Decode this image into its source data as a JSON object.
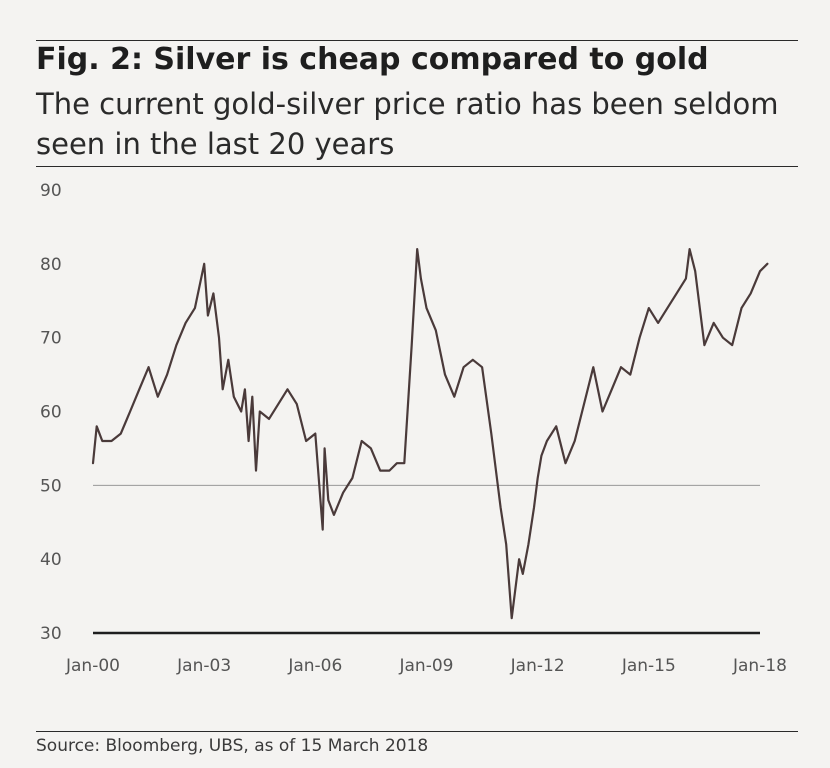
{
  "figure": {
    "title": "Fig. 2: Silver is cheap compared to gold",
    "subtitle": "The current gold-silver price ratio has been seldom seen in the last 20 years",
    "source": "Source: Bloomberg, UBS, as of 15 March 2018"
  },
  "chart_data": {
    "type": "line",
    "title": "Fig. 2: Silver is cheap compared to gold",
    "subtitle": "The current gold-silver price ratio has been seldom seen in the last 20 years",
    "xlabel": "",
    "ylabel": "",
    "ylim": [
      30,
      90
    ],
    "yticks": [
      "90",
      "80",
      "70",
      "60",
      "50",
      "40",
      "30"
    ],
    "xlim": [
      2000.0,
      2018.0
    ],
    "xticks": [
      {
        "label": "Jan-00",
        "value": 2000.0
      },
      {
        "label": "Jan-03",
        "value": 2003.0
      },
      {
        "label": "Jan-06",
        "value": 2006.0
      },
      {
        "label": "Jan-09",
        "value": 2009.0
      },
      {
        "label": "Jan-12",
        "value": 2012.0
      },
      {
        "label": "Jan-15",
        "value": 2015.0
      },
      {
        "label": "Jan-18",
        "value": 2018.0
      }
    ],
    "gridlines": [
      50
    ],
    "legend": "none",
    "line_color": "#4a3a3a",
    "series": [
      {
        "x": [
          2000.0,
          2000.1,
          2000.25,
          2000.5,
          2000.75,
          2001.0,
          2001.25,
          2001.5,
          2001.75,
          2002.0,
          2002.25,
          2002.5,
          2002.75,
          2003.0,
          2003.1,
          2003.25,
          2003.4,
          2003.5,
          2003.65,
          2003.8,
          2004.0,
          2004.1,
          2004.2,
          2004.3,
          2004.4,
          2004.5,
          2004.75,
          2005.0,
          2005.25,
          2005.5,
          2005.75,
          2006.0,
          2006.2,
          2006.25,
          2006.35,
          2006.5,
          2006.75,
          2007.0,
          2007.25,
          2007.5,
          2007.75,
          2008.0,
          2008.2,
          2008.4,
          2008.6,
          2008.75,
          2008.85,
          2009.0,
          2009.25,
          2009.5,
          2009.75,
          2010.0,
          2010.25,
          2010.5,
          2010.75,
          2011.0,
          2011.15,
          2011.3,
          2011.5,
          2011.6,
          2011.75,
          2011.9,
          2012.0,
          2012.1,
          2012.25,
          2012.5,
          2012.75,
          2013.0,
          2013.25,
          2013.5,
          2013.75,
          2014.0,
          2014.25,
          2014.5,
          2014.75,
          2015.0,
          2015.25,
          2015.5,
          2015.75,
          2016.0,
          2016.1,
          2016.25,
          2016.5,
          2016.75,
          2017.0,
          2017.25,
          2017.5,
          2017.75,
          2018.0,
          2018.2
        ],
        "y": [
          53,
          58,
          56,
          56,
          57,
          60,
          63,
          66,
          62,
          65,
          69,
          72,
          74,
          80,
          73,
          76,
          70,
          63,
          67,
          62,
          60,
          63,
          56,
          62,
          52,
          60,
          59,
          61,
          63,
          61,
          56,
          57,
          44,
          55,
          48,
          46,
          49,
          51,
          56,
          55,
          52,
          52,
          53,
          53,
          69,
          82,
          78,
          74,
          71,
          65,
          62,
          66,
          67,
          66,
          57,
          47,
          42,
          32,
          40,
          38,
          42,
          47,
          51,
          54,
          56,
          58,
          53,
          56,
          61,
          66,
          60,
          63,
          66,
          65,
          70,
          74,
          72,
          74,
          76,
          78,
          82,
          79,
          69,
          72,
          70,
          69,
          74,
          76,
          79,
          80
        ]
      }
    ]
  }
}
